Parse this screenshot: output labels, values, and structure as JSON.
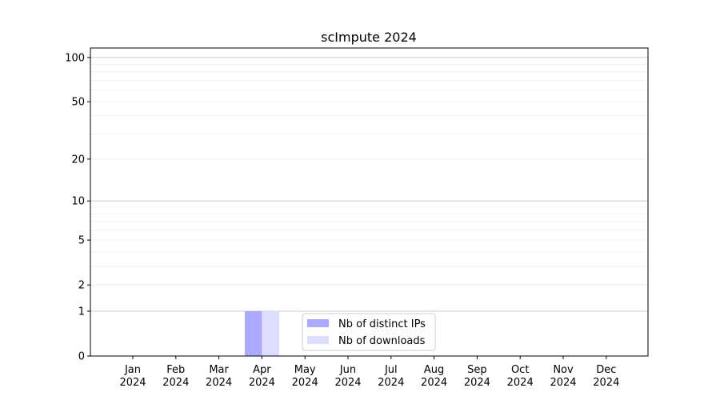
{
  "chart_data": {
    "type": "bar",
    "title": "scImpute 2024",
    "xlabel": "",
    "ylabel": "",
    "yscale": "log(1+y)",
    "ylim": [
      0,
      116
    ],
    "yticks": [
      0,
      1,
      2,
      5,
      10,
      20,
      50,
      100
    ],
    "ytick_labels": [
      "0",
      "1",
      "2",
      "5",
      "10",
      "20",
      "50",
      "100"
    ],
    "grid": true,
    "categories": [
      [
        "Jan",
        "2024"
      ],
      [
        "Feb",
        "2024"
      ],
      [
        "Mar",
        "2024"
      ],
      [
        "Apr",
        "2024"
      ],
      [
        "May",
        "2024"
      ],
      [
        "Jun",
        "2024"
      ],
      [
        "Jul",
        "2024"
      ],
      [
        "Aug",
        "2024"
      ],
      [
        "Sep",
        "2024"
      ],
      [
        "Oct",
        "2024"
      ],
      [
        "Nov",
        "2024"
      ],
      [
        "Dec",
        "2024"
      ]
    ],
    "series": [
      {
        "name": "Nb of distinct IPs",
        "color": "#aaaaff",
        "values": [
          0,
          0,
          0,
          1,
          0,
          0,
          0,
          0,
          0,
          0,
          0,
          0
        ]
      },
      {
        "name": "Nb of downloads",
        "color": "#ddddff",
        "values": [
          0,
          0,
          0,
          1,
          0,
          0,
          0,
          0,
          0,
          0,
          0,
          0
        ]
      }
    ],
    "legend_position": "bottom-center"
  }
}
